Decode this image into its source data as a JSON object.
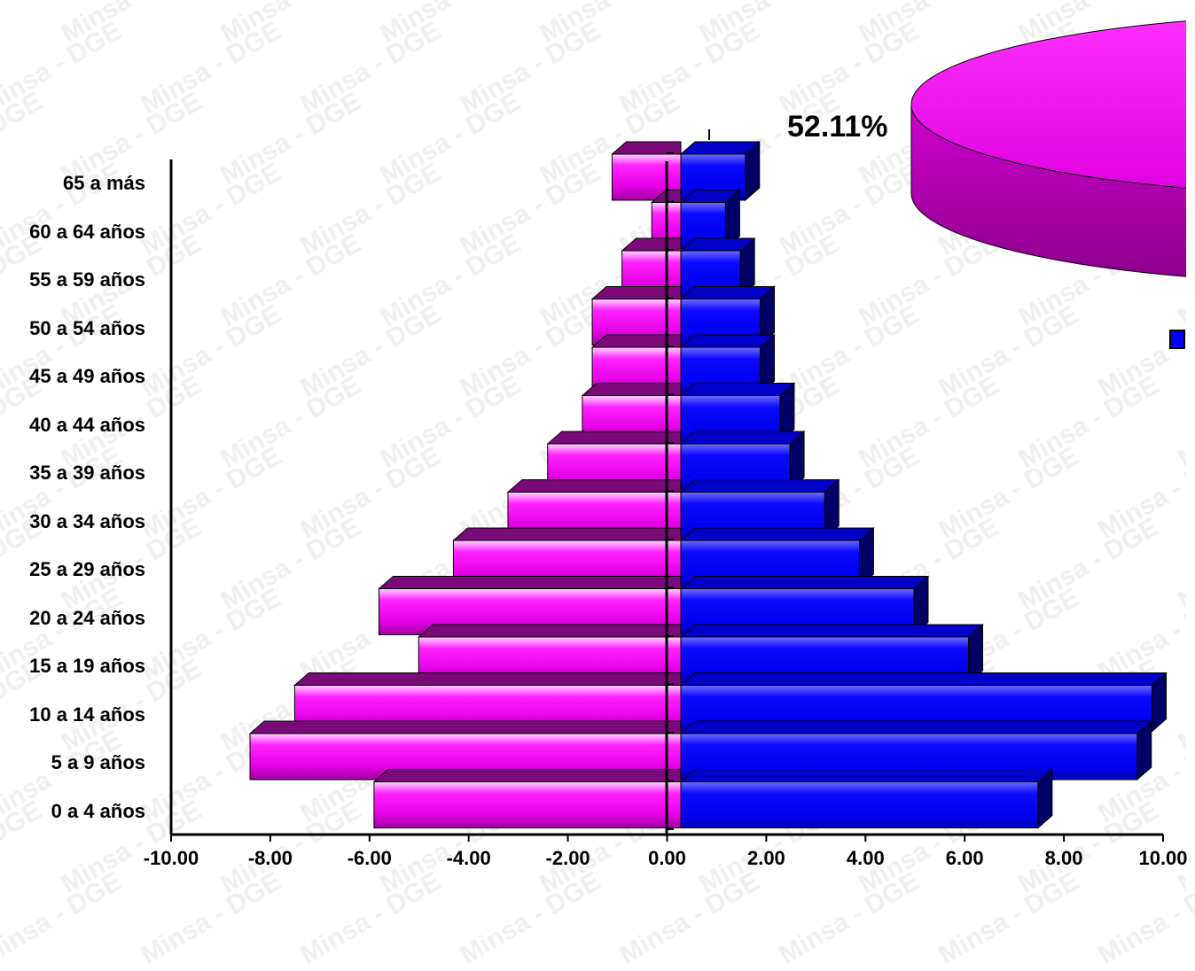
{
  "watermark": "Minsa - DGE",
  "colors": {
    "female": "#ff00ff",
    "female_dark": "#7a0a7a",
    "male": "#0000ff",
    "male_dark": "#000066"
  },
  "pie_label": "52.11%",
  "chart_data": [
    {
      "type": "bar",
      "orientation": "horizontal",
      "style": "3d-population-pyramid",
      "categories": [
        "0 a 4 años",
        "5 a 9 años",
        "10 a 14 años",
        "15 a 19 años",
        "20 a 24 años",
        "25 a 29 años",
        "30 a 34 años",
        "35 a 39 años",
        "40 a 44 años",
        "45 a 49 años",
        "50 a 54 años",
        "55 a 59 años",
        "60 a 64 años",
        "65 a más"
      ],
      "series": [
        {
          "color": "#ff00ff",
          "values": [
            -5.9,
            -8.4,
            -7.5,
            -5.0,
            -5.8,
            -4.3,
            -3.2,
            -2.4,
            -1.7,
            -1.5,
            -1.5,
            -0.9,
            -0.3,
            -1.1
          ]
        },
        {
          "color": "#0000ff",
          "values": [
            7.2,
            9.2,
            9.5,
            5.8,
            4.7,
            3.6,
            2.9,
            2.2,
            2.0,
            1.6,
            1.6,
            1.2,
            0.9,
            1.3
          ]
        }
      ],
      "xlim": [
        -10,
        10
      ],
      "xticks": [
        "-10.00",
        "-8.00",
        "-6.00",
        "-4.00",
        "-2.00",
        "0.00",
        "2.00",
        "4.00",
        "6.00",
        "8.00",
        "10.00"
      ],
      "grid": false
    },
    {
      "type": "pie",
      "style": "3d",
      "partially_visible": true,
      "data_labels": [
        "52.11%"
      ],
      "slices": [
        {
          "value": 52.11,
          "color": "#ff00ff"
        }
      ],
      "legend": {
        "position": "right",
        "entries": [
          {
            "color": "#0000ff"
          }
        ]
      }
    }
  ]
}
